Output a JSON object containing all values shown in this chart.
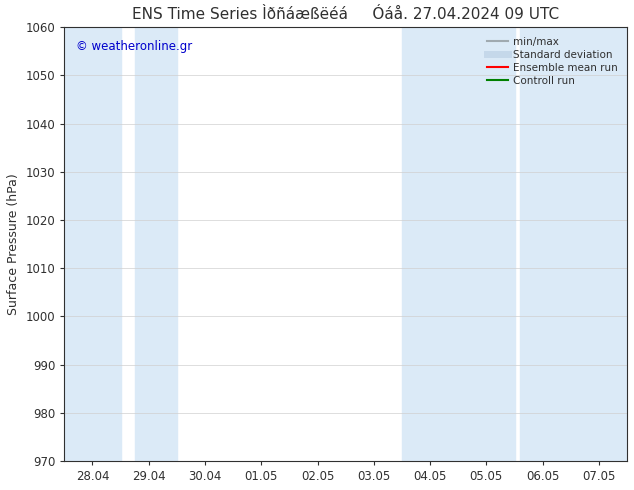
{
  "title": "ENS Time Series Ìðñáæßëéá     Óáå. 27.04.2024 09 UTC",
  "ylabel": "Surface Pressure (hPa)",
  "ylim": [
    970,
    1060
  ],
  "yticks": [
    970,
    980,
    990,
    1000,
    1010,
    1020,
    1030,
    1040,
    1050,
    1060
  ],
  "xtick_labels": [
    "28.04",
    "29.04",
    "30.04",
    "01.05",
    "02.05",
    "03.05",
    "04.05",
    "05.05",
    "06.05",
    "07.05"
  ],
  "xtick_positions": [
    0,
    1,
    2,
    3,
    4,
    5,
    6,
    7,
    8,
    9
  ],
  "xlim": [
    -0.5,
    9.5
  ],
  "shaded_bands": [
    {
      "x_start": -0.5,
      "x_end": 0.5
    },
    {
      "x_start": 0.75,
      "x_end": 1.5
    },
    {
      "x_start": 5.5,
      "x_end": 7.5
    },
    {
      "x_start": 7.6,
      "x_end": 9.5
    }
  ],
  "shade_color": "#dbeaf7",
  "background_color": "#ffffff",
  "watermark": "© weatheronline.gr",
  "watermark_color": "#0000cc",
  "legend_items": [
    {
      "label": "min/max",
      "color": "#a0aab0",
      "lw": 1.5,
      "style": "solid"
    },
    {
      "label": "Standard deviation",
      "color": "#c5d8ea",
      "lw": 5,
      "style": "solid"
    },
    {
      "label": "Ensemble mean run",
      "color": "#ff0000",
      "lw": 1.5,
      "style": "solid"
    },
    {
      "label": "Controll run",
      "color": "#008000",
      "lw": 1.5,
      "style": "solid"
    }
  ],
  "title_fontsize": 11,
  "tick_fontsize": 8.5,
  "ylabel_fontsize": 9,
  "axis_color": "#303030",
  "grid_color": "#d0d0d0"
}
